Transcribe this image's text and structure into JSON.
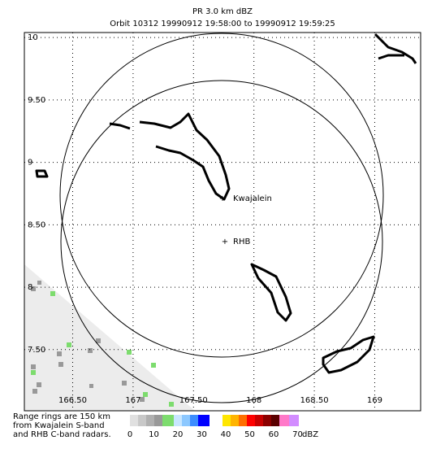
{
  "header": {
    "title": "PR  3.0 km dBZ",
    "subtitle": "Orbit 10312 19990912 19:58:00 to 19990912 19:59:25"
  },
  "map": {
    "lon_range": [
      166.1,
      169.38
    ],
    "lat_range": [
      7.01,
      10.04
    ],
    "lat_ticks": [
      {
        "value": 10,
        "label": "10"
      },
      {
        "value": 9.5,
        "label": "9.50"
      },
      {
        "value": 9,
        "label": "9"
      },
      {
        "value": 8.5,
        "label": "8.50"
      },
      {
        "value": 8,
        "label": "8"
      },
      {
        "value": 7.5,
        "label": "7.50"
      }
    ],
    "lon_ticks": [
      {
        "value": 166.5,
        "label": "166.50"
      },
      {
        "value": 167,
        "label": "167"
      },
      {
        "value": 167.5,
        "label": "167.50"
      },
      {
        "value": 168,
        "label": "168"
      },
      {
        "value": 168.5,
        "label": "168.50"
      },
      {
        "value": 169,
        "label": "169"
      }
    ],
    "places": [
      "Kwajalein",
      "RHB"
    ]
  },
  "note": [
    "Range rings are 150 km",
    "from Kwajalein S-band",
    "and RHB C-band radars."
  ],
  "colorbar": {
    "ticks": [
      0,
      10,
      20,
      30,
      40,
      50,
      60,
      70
    ],
    "unit": "dBZ"
  }
}
